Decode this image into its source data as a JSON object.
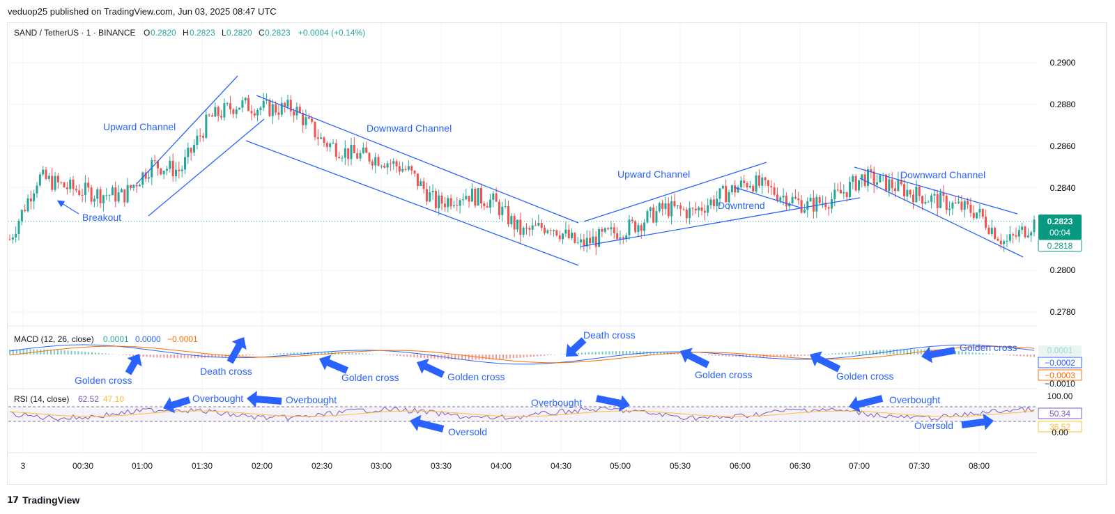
{
  "header": {
    "published": "veduop25 published on TradingView.com, Jun 03, 2025 08:47 UTC"
  },
  "symbol": {
    "name": "SAND / TetherUS · 1 · BINANCE",
    "o_label": "O",
    "o": "0.2820",
    "h_label": "H",
    "h": "0.2823",
    "l_label": "L",
    "l": "0.2820",
    "c_label": "C",
    "c": "0.2823",
    "change": "+0.0004 (+0.14%)"
  },
  "price_axis": {
    "ticks": [
      "0.2900",
      "0.2880",
      "0.2860",
      "0.2840",
      "0.2800",
      "0.2780"
    ],
    "current_price": "0.2823",
    "countdown": "00:04",
    "low_label": "0.2818"
  },
  "time_axis": {
    "ticks": [
      "3",
      "00:30",
      "01:00",
      "01:30",
      "02:00",
      "02:30",
      "03:00",
      "03:30",
      "04:00",
      "04:30",
      "05:00",
      "05:30",
      "06:00",
      "06:30",
      "07:00",
      "07:30",
      "08:00"
    ]
  },
  "macd": {
    "title": "MACD (12, 26, close)",
    "v1": "0.0001",
    "v2": "0.0000",
    "v3": "−0.0001",
    "axis_labels": [
      "0.0001",
      "−0.0002",
      "−0.0003",
      "−0.0010"
    ]
  },
  "rsi": {
    "title": "RSI (14, close)",
    "v1": "62.52",
    "v2": "47.10",
    "axis_labels": [
      "100.00",
      "50.34",
      "36.52",
      "0.00"
    ]
  },
  "annotations": {
    "upward_channel_1": "Upward Channel",
    "downward_channel_1": "Downward Channel",
    "upward_channel_2": "Upward Channel",
    "downward_channel_2": "Downward Channel",
    "downtrend": "Downtrend",
    "breakout": "Breakout",
    "golden_cross": "Golden cross",
    "death_cross": "Death cross",
    "overbought": "Overbought",
    "oversold": "Oversold"
  },
  "footer": {
    "brand": "TradingView"
  },
  "colors": {
    "up": "#26a69a",
    "down": "#ef5350",
    "annotation": "#2962ff",
    "macd": "#2962ff",
    "signal": "#ff6d00",
    "rsi": "#7e57c2",
    "rsi_ma": "#fbc02d"
  },
  "chart_data": {
    "type": "candlestick",
    "title": "SAND / TetherUS · 1 · BINANCE",
    "x": [
      "00:00",
      "00:15",
      "00:30",
      "00:45",
      "01:00",
      "01:15",
      "01:30",
      "01:40",
      "01:45",
      "01:55",
      "02:00",
      "02:10",
      "02:30",
      "02:45",
      "03:00",
      "03:15",
      "03:30",
      "03:45",
      "04:00",
      "04:15",
      "04:30",
      "04:45",
      "05:00",
      "05:15",
      "05:30",
      "05:45",
      "06:00",
      "06:15",
      "06:30",
      "06:45",
      "07:00",
      "07:15",
      "07:30",
      "07:45",
      "08:00",
      "08:15",
      "08:30"
    ],
    "close": [
      0.2815,
      0.2845,
      0.284,
      0.2837,
      0.2836,
      0.2851,
      0.2848,
      0.2873,
      0.288,
      0.2878,
      0.2878,
      0.2862,
      0.2856,
      0.2854,
      0.2848,
      0.2832,
      0.2837,
      0.2833,
      0.2818,
      0.2822,
      0.2812,
      0.2817,
      0.2822,
      0.283,
      0.2828,
      0.2836,
      0.2843,
      0.2837,
      0.2831,
      0.2835,
      0.2845,
      0.2841,
      0.2836,
      0.2832,
      0.2828,
      0.2813,
      0.2823
    ],
    "ylim": [
      0.2775,
      0.291
    ],
    "y_ticks": [
      0.278,
      0.28,
      0.284,
      0.286,
      0.288,
      0.29
    ],
    "indicators": [
      "MACD (12, 26, close)",
      "RSI (14, close)"
    ],
    "rsi_levels": [
      70,
      30
    ]
  }
}
